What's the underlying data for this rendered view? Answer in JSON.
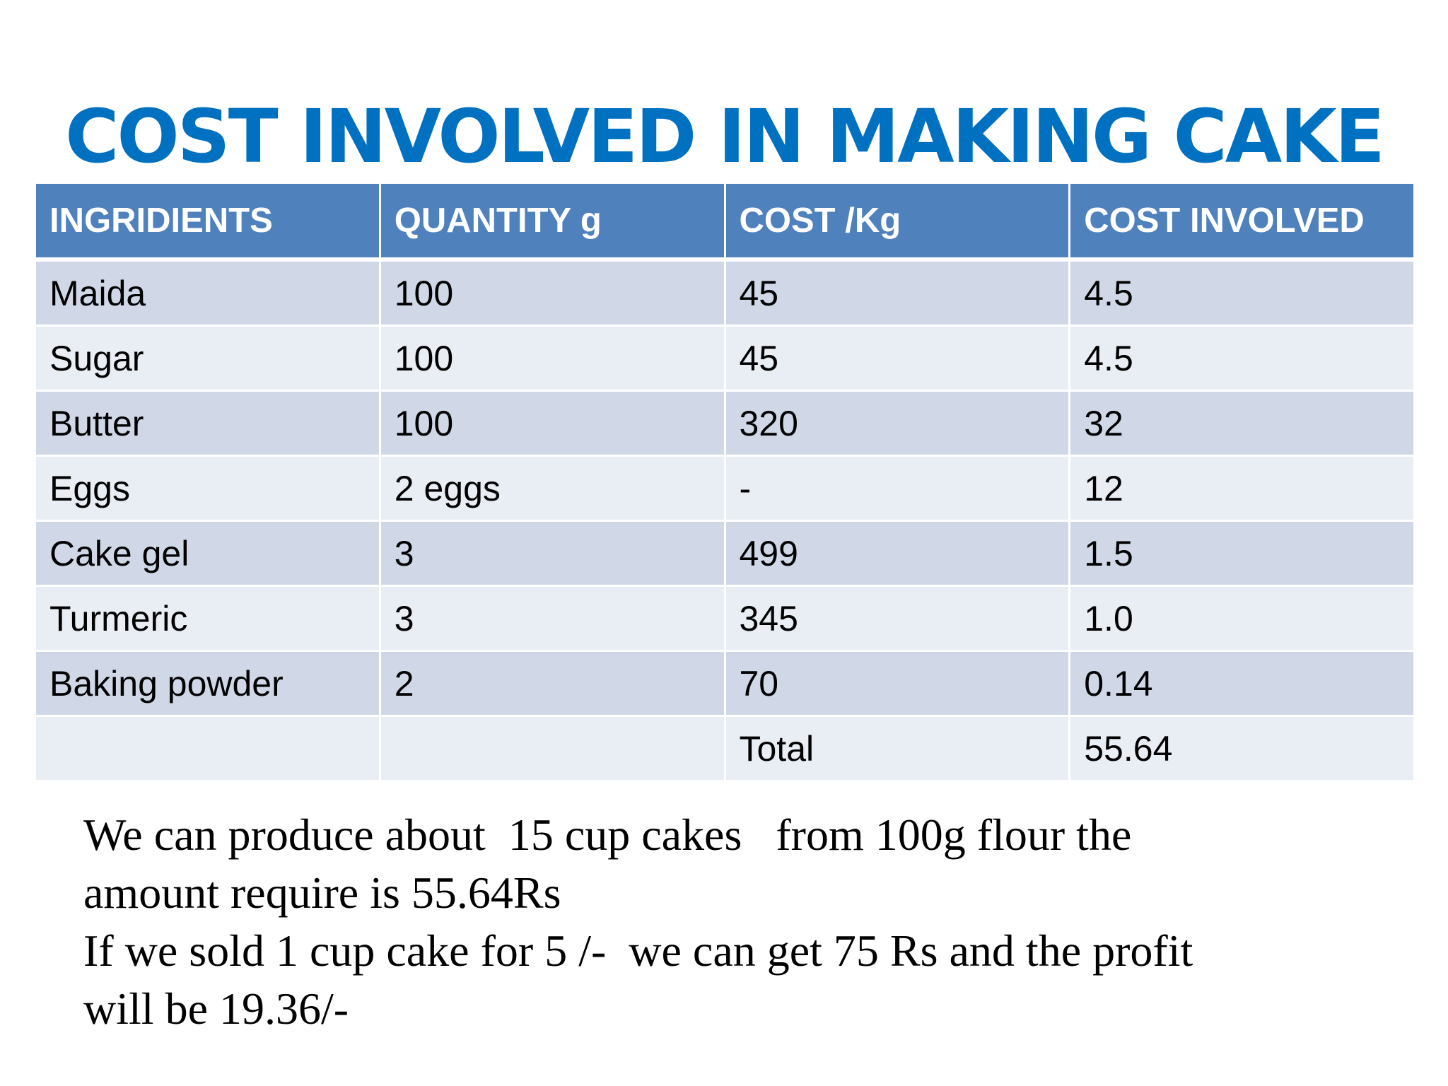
{
  "title": "COST INVOLVED IN MAKING CAKE",
  "table": {
    "headers": [
      "INGRIDIENTS",
      "QUANTITY  g",
      "COST /Kg",
      "COST INVOLVED"
    ],
    "rows": [
      [
        "Maida",
        "100",
        "45",
        "4.5"
      ],
      [
        "Sugar",
        "100",
        "45",
        "4.5"
      ],
      [
        "Butter",
        "100",
        "320",
        "32"
      ],
      [
        "Eggs",
        "2 eggs",
        "-",
        "12"
      ],
      [
        "Cake gel",
        "3",
        "499",
        "1.5"
      ],
      [
        "Turmeric",
        "3",
        "345",
        "1.0"
      ],
      [
        "Baking powder",
        "2",
        "70",
        "0.14"
      ],
      [
        "",
        "",
        "Total",
        "55.64"
      ]
    ]
  },
  "note": {
    "line1": "We can produce about  15 cup cakes   from 100g flour the",
    "line2": "amount require is 55.64Rs",
    "line3": "If we sold 1 cup cake for 5 /-  we can get 75 Rs and the profit",
    "line4": "will be 19.36/-"
  },
  "colors": {
    "title": "#0070c0",
    "header_bg": "#4f81bd",
    "row_dark": "#d0d8e8",
    "row_light": "#e9edf4"
  }
}
